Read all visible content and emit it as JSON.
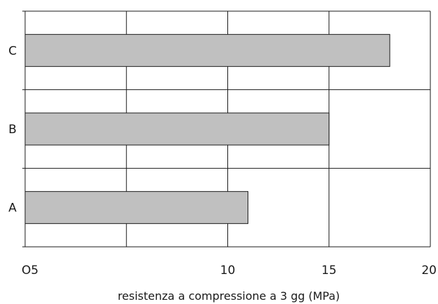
{
  "chart_data": {
    "type": "bar",
    "orientation": "horizontal",
    "categories": [
      "A",
      "B",
      "C"
    ],
    "values": [
      11,
      15,
      18
    ],
    "xlim": [
      0,
      20
    ],
    "tick_values": [
      0,
      5,
      10,
      15,
      20
    ],
    "tick_labels": [
      "O5",
      "",
      "10",
      "15",
      "20"
    ],
    "xlabel": "resistenza a compressione a 3 gg (MPa)",
    "ylabel": "",
    "title": "",
    "grid": true,
    "legend": "none",
    "colors": {
      "bar": "#c0c0c0",
      "edge": "#1a1a1a",
      "grid": "#1a1a1a"
    }
  }
}
